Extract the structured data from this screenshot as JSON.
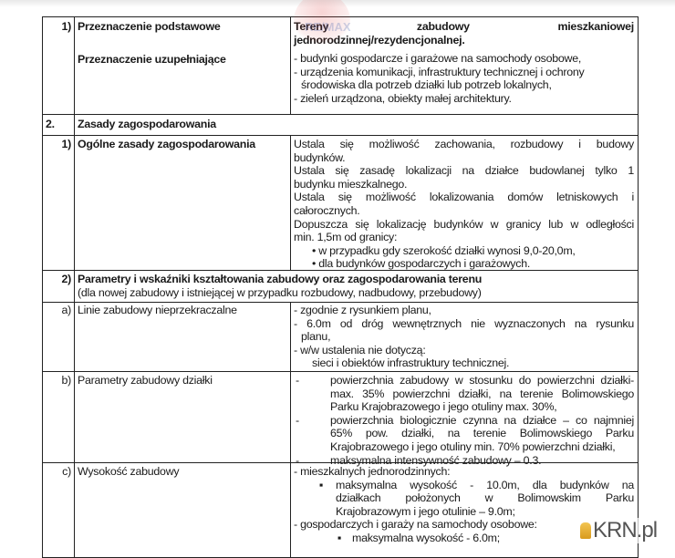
{
  "watermarks": {
    "top": "RE/MAX",
    "bottom": "KRN.pl"
  },
  "rows": {
    "r1": {
      "num": "1)",
      "label1": "Przeznaczenie podstawowe",
      "label2": "Przeznaczenie uzupełniające",
      "main1": "Tereny zabudowy mieszkaniowej",
      "main2": "jednorodzinnej/rezydencjonalnej.",
      "items": [
        "- budynki gospodarcze i garażowe na samochody osobowe,",
        "- urządzenia komunikacji, infrastruktury technicznej i ochrony",
        "środowiska dla potrzeb działki lub potrzeb lokalnych,",
        "- zieleń urządzona, obiekty małej architektury."
      ]
    },
    "r2": {
      "num": "2.",
      "label": "Zasady zagospodarowania"
    },
    "r3": {
      "num": "1)",
      "label": "Ogólne zasady zagospodarowania",
      "lines": [
        "Ustala się możliwość zachowania, rozbudowy i budowy",
        "budynków.",
        "Ustala się zasadę lokalizacji na działce budowlanej tylko 1",
        "budynku mieszkalnego.",
        "Ustala się możliwość lokalizowania domów letniskowych i",
        "całorocznych.",
        "Dopuszcza się lokalizację budynków w granicy lub w odległości",
        "min. 1,5m od granicy:"
      ],
      "bullets": [
        "• w przypadku gdy szerokość działki wynosi 9,0-20,0m,",
        "• dla budynków gospodarczych i garażowych."
      ]
    },
    "r4": {
      "num": "2)",
      "title": "Parametry i wskaźniki kształtowania zabudowy oraz zagospodarowania terenu",
      "subtitle": "(dla nowej zabudowy i istniejącej w przypadku rozbudowy, nadbudowy, przebudowy)"
    },
    "r5": {
      "num": "a)",
      "label": "Linie zabudowy nieprzekraczalne",
      "lines": [
        "-  zgodnie z rysunkiem planu,",
        "-  6.0m od  dróg wewnętrznych nie wyznaczonych na rysunku",
        "planu,",
        "-  w/w ustalenia nie dotyczą:",
        "sieci i obiektów infrastruktury technicznej."
      ]
    },
    "r6": {
      "num": "b)",
      "label": "Parametry zabudowy działki",
      "items": [
        {
          "marker": "-",
          "lines": [
            "powierzchnia zabudowy w stosunku do powierzchni działki-",
            "max. 35% powierzchni działki, na terenie Bolimowskiego",
            "Parku Krajobrazowego i jego otuliny max. 30%,"
          ]
        },
        {
          "marker": "-",
          "lines": [
            "powierzchnia biologicznie czynna na działce – co najmniej",
            "65% pow. działki, na terenie Bolimowskiego Parku",
            "Krajobrazowego i jego otuliny min. 70% powierzchni działki,"
          ]
        },
        {
          "marker": "-",
          "lines": [
            "maksymalna intensywność zabudowy – 0.3."
          ]
        }
      ]
    },
    "r7": {
      "num": "c)",
      "label": "Wysokość zabudowy",
      "head1": "- mieszkalnych jednorodzinnych:",
      "sub1": {
        "marker": "▪",
        "lines": [
          "maksymalna  wysokość - 10.0m, dla budynków na",
          "działkach położonych w Bolimowskim Parku",
          "Krajobrazowym i jego otulinie – 9.0m;"
        ]
      },
      "head2": "- gospodarczych i garaży na samochody osobowe:",
      "sub2": {
        "marker": "▪",
        "lines": [
          "maksymalna wysokość - 6.0m;"
        ]
      }
    }
  }
}
